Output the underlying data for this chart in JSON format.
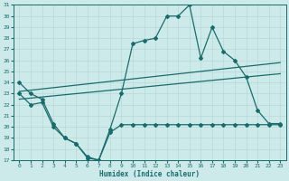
{
  "xlabel": "Humidex (Indice chaleur)",
  "xlim": [
    -0.5,
    23.5
  ],
  "ylim": [
    17,
    31
  ],
  "xticks": [
    0,
    1,
    2,
    3,
    4,
    5,
    6,
    7,
    8,
    9,
    10,
    11,
    12,
    13,
    14,
    15,
    16,
    17,
    18,
    19,
    20,
    21,
    22,
    23
  ],
  "yticks": [
    17,
    18,
    19,
    20,
    21,
    22,
    23,
    24,
    25,
    26,
    27,
    28,
    29,
    30,
    31
  ],
  "bg_color": "#cdeaea",
  "line_color": "#1a6b6b",
  "grid_color": "#b8d8d8",
  "line1_x": [
    0,
    1,
    2,
    3,
    4,
    5,
    6,
    7,
    8,
    9,
    10,
    11,
    12,
    13,
    14,
    15,
    16,
    17,
    18,
    19,
    20,
    21,
    22,
    23
  ],
  "line1_y": [
    24.0,
    23.0,
    22.5,
    20.3,
    19.0,
    18.5,
    17.3,
    17.0,
    19.8,
    23.0,
    27.5,
    27.8,
    28.0,
    30.0,
    30.0,
    31.0,
    26.2,
    29.0,
    26.8,
    26.0,
    24.5,
    21.5,
    20.3,
    20.3
  ],
  "line2_x": [
    0,
    1,
    2,
    3,
    4,
    5,
    6,
    7,
    8,
    9,
    10,
    11,
    12,
    13,
    14,
    15,
    16,
    17,
    18,
    19,
    20,
    21,
    22,
    23
  ],
  "line2_y": [
    23.0,
    22.0,
    22.2,
    20.0,
    19.0,
    18.5,
    17.2,
    17.0,
    19.5,
    20.2,
    20.2,
    20.2,
    20.2,
    20.2,
    20.2,
    20.2,
    20.2,
    20.2,
    20.2,
    20.2,
    20.2,
    20.2,
    20.2,
    20.2
  ],
  "line3_x": [
    0,
    23
  ],
  "line3_y": [
    23.2,
    25.8
  ],
  "line4_x": [
    0,
    23
  ],
  "line4_y": [
    22.5,
    24.8
  ]
}
